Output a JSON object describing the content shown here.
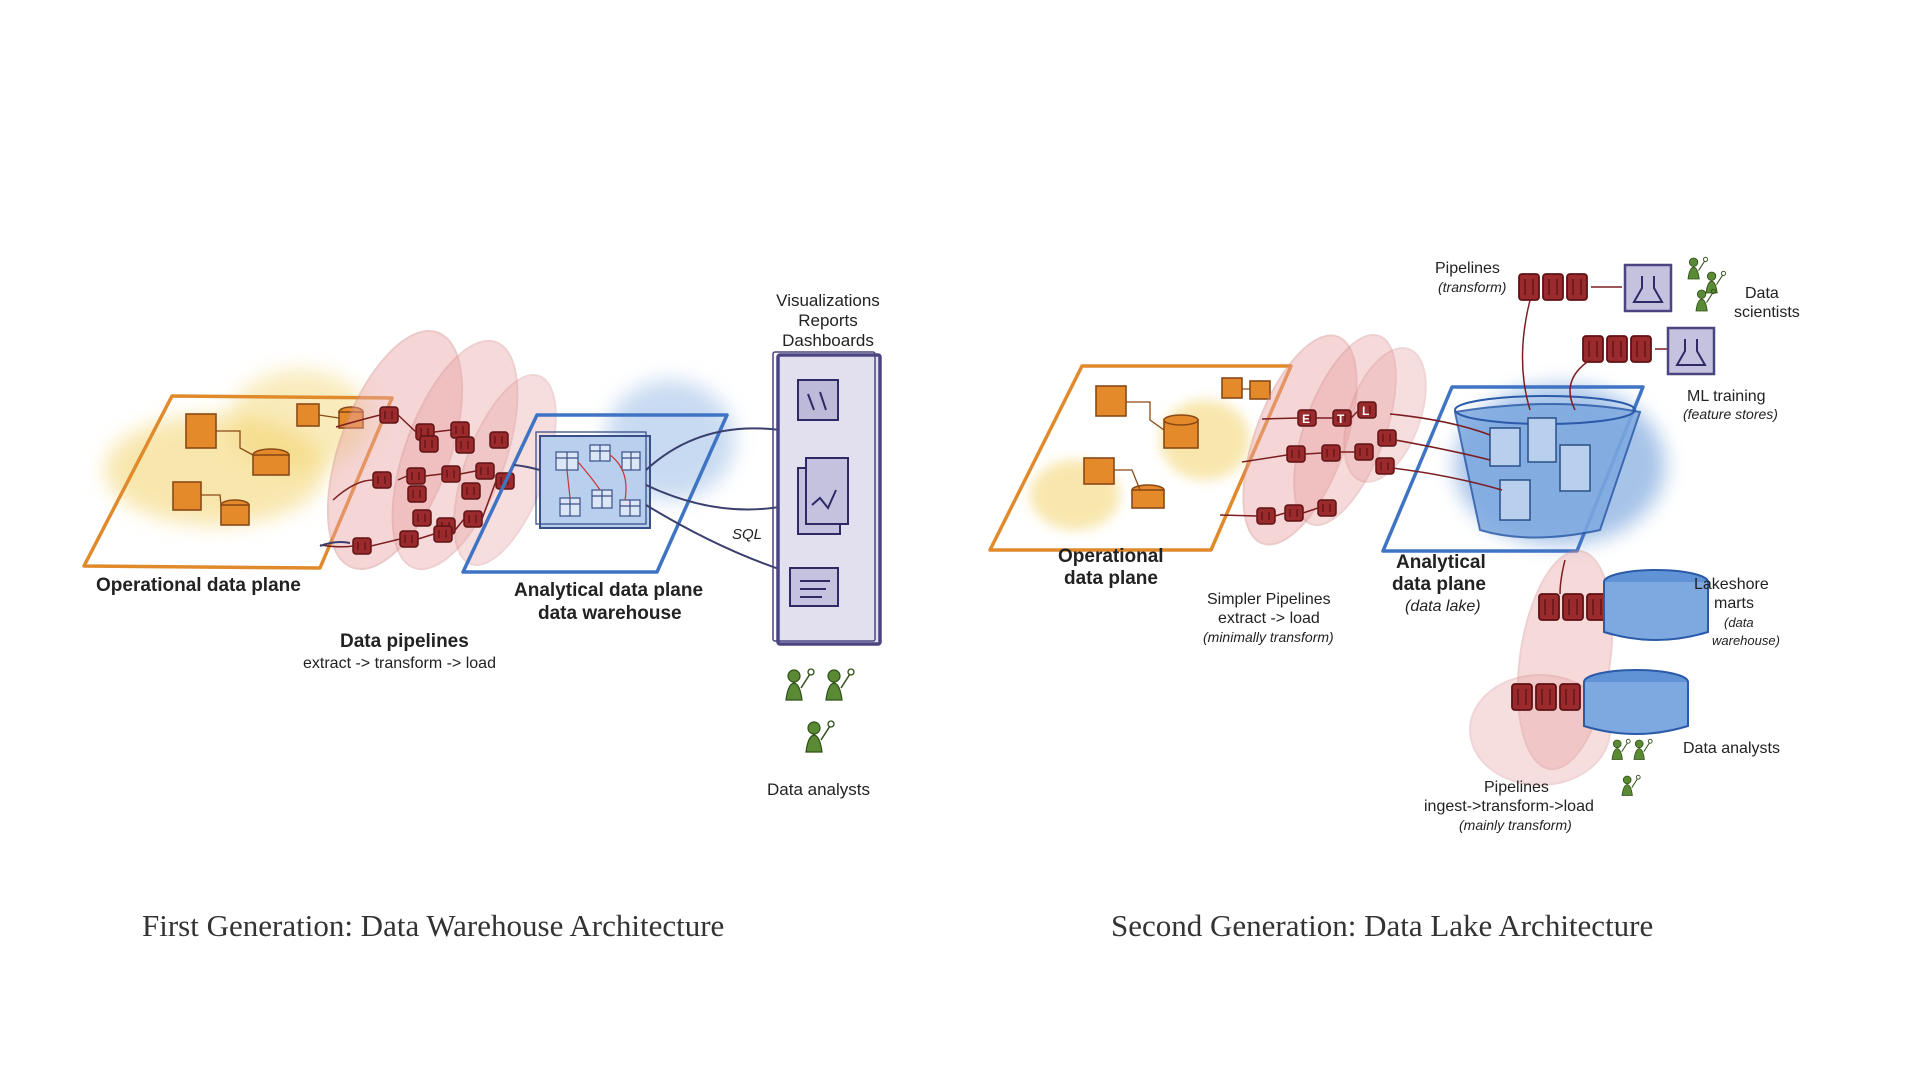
{
  "slide": {
    "captions": {
      "left": "First Generation: Data Warehouse Architecture",
      "right": "Second Generation: Data Lake Architecture"
    }
  },
  "first_gen": {
    "operational_plane": "Operational data plane",
    "pipelines_title": "Data pipelines",
    "pipelines_sub": "extract -> transform -> load",
    "analytical_line1": "Analytical data plane",
    "analytical_line2": "data warehouse",
    "sql": "SQL",
    "outputs": [
      "Visualizations",
      "Reports",
      "Dashboards"
    ],
    "analysts": "Data analysts"
  },
  "second_gen": {
    "operational_line1": "Operational",
    "operational_line2": "data plane",
    "simple_pipes": [
      "Simpler Pipelines",
      "extract -> load",
      "(minimally transform)"
    ],
    "etl_letters": [
      "E",
      "T",
      "L"
    ],
    "analytical": [
      "Analytical",
      "data plane",
      "(data lake)"
    ],
    "pipes_top": [
      "Pipelines",
      "(transform)"
    ],
    "scientists": [
      "Data",
      "scientists"
    ],
    "ml": [
      "ML training",
      "(feature stores)"
    ],
    "lakeshore": [
      "Lakeshore",
      "marts",
      "(data",
      "warehouse)"
    ],
    "analysts": "Data analysts",
    "pipes_bottom": [
      "Pipelines",
      "ingest->transform->load",
      "(mainly transform)"
    ]
  },
  "colors": {
    "orange": "#e08a2c",
    "yellow_wash": "#f3d36b",
    "red_wash": "#e9a3a3",
    "dark_red": "#8c1f22",
    "blue": "#3f73c4",
    "blue_wash": "#9cbde6",
    "purple": "#4a4580",
    "green": "#4f7a2e"
  }
}
